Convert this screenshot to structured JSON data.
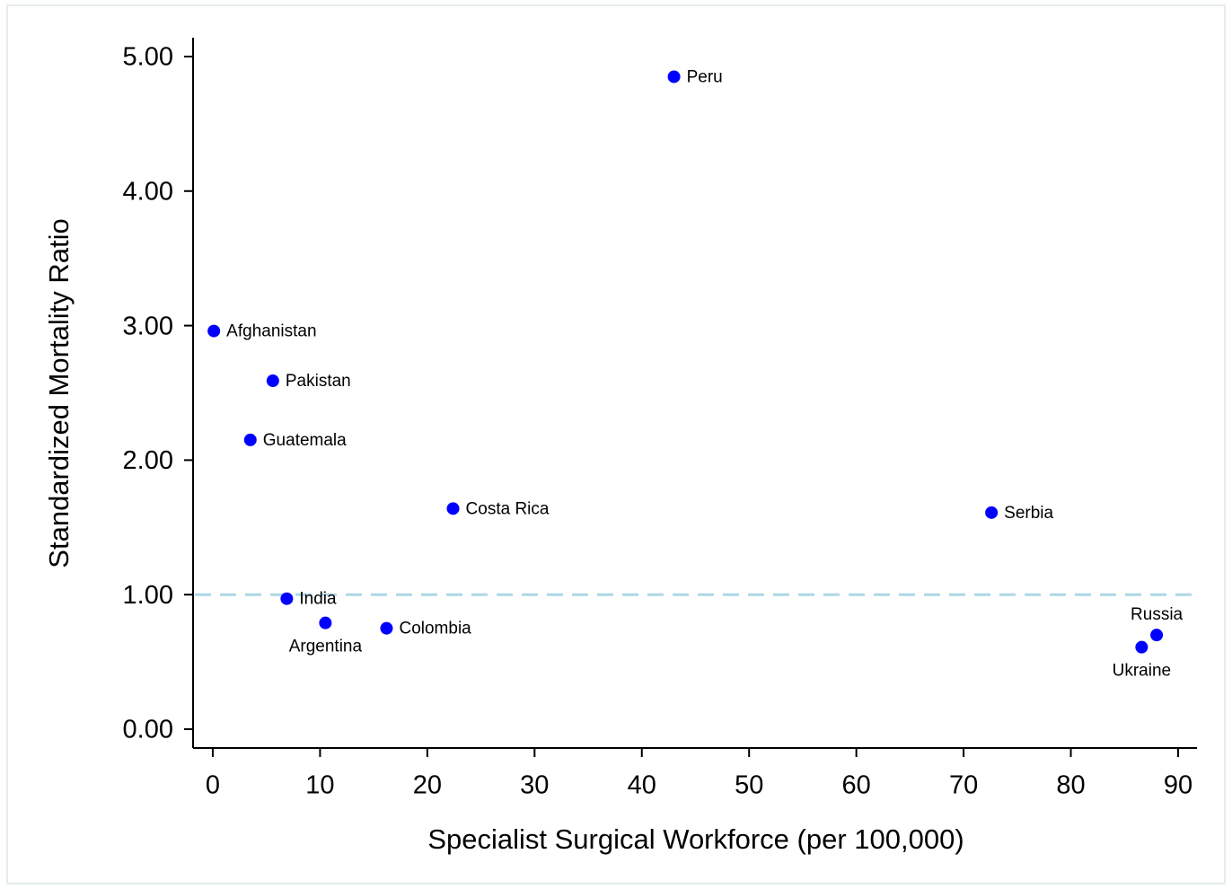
{
  "chart_data": {
    "type": "scatter",
    "x_label": "Specialist Surgical Workforce (per 100,000)",
    "y_label": "Standardized Mortality Ratio",
    "color": "#0000ff",
    "labels": [
      "Peru",
      "Afghanistan",
      "Pakistan",
      "Guatemala",
      "Costa Rica",
      "Serbia",
      "India",
      "Argentina",
      "Colombia",
      "Russia",
      "Ukraine"
    ],
    "x": [
      43,
      0.1,
      5.6,
      3.5,
      22.4,
      72.6,
      6.9,
      10.5,
      16.2,
      88.0,
      86.6
    ],
    "values": [
      4.85,
      2.96,
      2.59,
      2.15,
      1.64,
      1.61,
      0.97,
      0.79,
      0.75,
      0.7,
      0.61
    ],
    "xlim": [
      -1.84,
      91.76
    ],
    "ylim": [
      -0.14,
      5.14
    ],
    "xticks": [
      0,
      10,
      20,
      30,
      40,
      50,
      60,
      70,
      80,
      90
    ],
    "yticks": [
      {
        "value": 0,
        "label": "0.00"
      },
      {
        "value": 1,
        "label": "1.00"
      },
      {
        "value": 2,
        "label": "2.00"
      },
      {
        "value": 3,
        "label": "3.00"
      },
      {
        "value": 4,
        "label": "4.00"
      },
      {
        "value": 5,
        "label": "5.00"
      }
    ],
    "reference_line": {
      "y": 1,
      "color": "#add8e6"
    }
  }
}
